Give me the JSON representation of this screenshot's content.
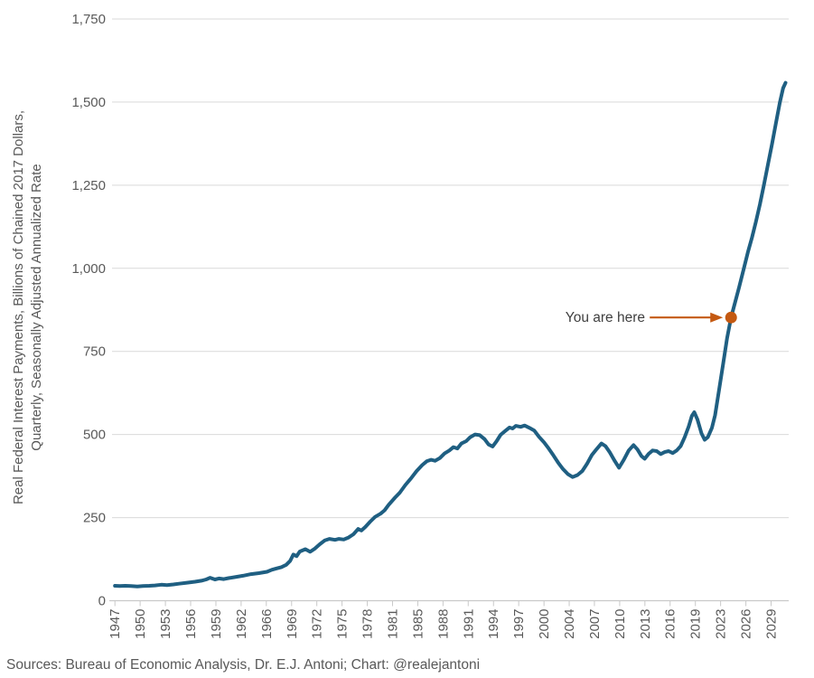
{
  "chart_data": {
    "type": "line",
    "title": "",
    "ylabel_line1": "Real Federal Interest Payments, Billions of Chained 2017 Dollars,",
    "ylabel_line2": "Quarterly, Seasonally Adjusted Annualized Rate",
    "source_note": "Sources: Bureau of Economic Analysis, Dr. E.J. Antoni; Chart: @realejantoni",
    "grid": "horizontal",
    "legend": "none",
    "x_range": [
      1946.3,
      2031.2
    ],
    "y_range": [
      0,
      1750
    ],
    "y_ticks": [
      {
        "value": 0,
        "label": "0"
      },
      {
        "value": 250,
        "label": "250"
      },
      {
        "value": 500,
        "label": "500"
      },
      {
        "value": 750,
        "label": "750"
      },
      {
        "value": 1000,
        "label": "1,000"
      },
      {
        "value": 1250,
        "label": "1,250"
      },
      {
        "value": 1500,
        "label": "1,500"
      },
      {
        "value": 1750,
        "label": "1,750"
      }
    ],
    "x_ticks": [
      {
        "year": 1947.0,
        "label": "1947"
      },
      {
        "year": 1950.15,
        "label": "1950"
      },
      {
        "year": 1953.31,
        "label": "1953"
      },
      {
        "year": 1956.46,
        "label": "1956"
      },
      {
        "year": 1959.62,
        "label": "1959"
      },
      {
        "year": 1962.77,
        "label": "1962"
      },
      {
        "year": 1965.92,
        "label": "1966"
      },
      {
        "year": 1969.08,
        "label": "1969"
      },
      {
        "year": 1972.23,
        "label": "1972"
      },
      {
        "year": 1975.38,
        "label": "1975"
      },
      {
        "year": 1978.54,
        "label": "1978"
      },
      {
        "year": 1981.69,
        "label": "1981"
      },
      {
        "year": 1984.85,
        "label": "1985"
      },
      {
        "year": 1988.0,
        "label": "1988"
      },
      {
        "year": 1991.15,
        "label": "1991"
      },
      {
        "year": 1994.31,
        "label": "1994"
      },
      {
        "year": 1997.46,
        "label": "1997"
      },
      {
        "year": 2000.62,
        "label": "2000"
      },
      {
        "year": 2003.77,
        "label": "2004"
      },
      {
        "year": 2006.92,
        "label": "2007"
      },
      {
        "year": 2010.08,
        "label": "2010"
      },
      {
        "year": 2013.23,
        "label": "2013"
      },
      {
        "year": 2016.38,
        "label": "2016"
      },
      {
        "year": 2019.54,
        "label": "2019"
      },
      {
        "year": 2022.69,
        "label": "2023"
      },
      {
        "year": 2025.85,
        "label": "2026"
      },
      {
        "year": 2029.0,
        "label": "2029"
      }
    ],
    "series": [
      {
        "name": "Real Federal Interest Payments",
        "color": "#1f5f82",
        "points": [
          [
            1947,
            45
          ],
          [
            1947.6,
            44
          ],
          [
            1948.3,
            45
          ],
          [
            1949,
            44
          ],
          [
            1949.8,
            43
          ],
          [
            1950.5,
            44
          ],
          [
            1951.3,
            45
          ],
          [
            1952,
            46
          ],
          [
            1952.8,
            48
          ],
          [
            1953.5,
            47
          ],
          [
            1954.3,
            49
          ],
          [
            1955,
            51
          ],
          [
            1956,
            54
          ],
          [
            1957,
            57
          ],
          [
            1957.8,
            60
          ],
          [
            1958.4,
            64
          ],
          [
            1958.9,
            69
          ],
          [
            1959.5,
            64
          ],
          [
            1960,
            67
          ],
          [
            1960.6,
            65
          ],
          [
            1961.2,
            68
          ],
          [
            1962,
            71
          ],
          [
            1963,
            75
          ],
          [
            1964,
            80
          ],
          [
            1965,
            83
          ],
          [
            1966,
            87
          ],
          [
            1966.6,
            93
          ],
          [
            1967.2,
            97
          ],
          [
            1967.8,
            101
          ],
          [
            1968.4,
            108
          ],
          [
            1968.9,
            120
          ],
          [
            1969.3,
            139
          ],
          [
            1969.7,
            134
          ],
          [
            1970.1,
            148
          ],
          [
            1970.8,
            155
          ],
          [
            1971.4,
            147
          ],
          [
            1972,
            157
          ],
          [
            1972.6,
            170
          ],
          [
            1973.2,
            181
          ],
          [
            1973.8,
            186
          ],
          [
            1974.5,
            183
          ],
          [
            1975,
            186
          ],
          [
            1975.6,
            184
          ],
          [
            1976.2,
            190
          ],
          [
            1976.8,
            200
          ],
          [
            1977.4,
            216
          ],
          [
            1977.8,
            211
          ],
          [
            1978.3,
            222
          ],
          [
            1978.9,
            238
          ],
          [
            1979.5,
            252
          ],
          [
            1980.2,
            262
          ],
          [
            1980.7,
            272
          ],
          [
            1981.2,
            288
          ],
          [
            1982,
            310
          ],
          [
            1982.6,
            325
          ],
          [
            1983.3,
            348
          ],
          [
            1984,
            368
          ],
          [
            1984.7,
            390
          ],
          [
            1985.4,
            408
          ],
          [
            1986,
            420
          ],
          [
            1986.5,
            424
          ],
          [
            1987,
            421
          ],
          [
            1987.6,
            429
          ],
          [
            1988.2,
            443
          ],
          [
            1988.8,
            452
          ],
          [
            1989.3,
            462
          ],
          [
            1989.8,
            458
          ],
          [
            1990.3,
            473
          ],
          [
            1990.9,
            480
          ],
          [
            1991.4,
            492
          ],
          [
            1992,
            500
          ],
          [
            1992.6,
            498
          ],
          [
            1993.2,
            486
          ],
          [
            1993.7,
            470
          ],
          [
            1994.2,
            464
          ],
          [
            1994.7,
            480
          ],
          [
            1995.2,
            499
          ],
          [
            1995.8,
            511
          ],
          [
            1996.3,
            521
          ],
          [
            1996.7,
            518
          ],
          [
            1997.1,
            526
          ],
          [
            1997.7,
            523
          ],
          [
            1998.2,
            527
          ],
          [
            1998.8,
            520
          ],
          [
            1999.4,
            512
          ],
          [
            2000,
            493
          ],
          [
            2000.6,
            477
          ],
          [
            2001.2,
            458
          ],
          [
            2001.8,
            437
          ],
          [
            2002.4,
            415
          ],
          [
            2003,
            396
          ],
          [
            2003.6,
            381
          ],
          [
            2004.2,
            372
          ],
          [
            2004.8,
            378
          ],
          [
            2005.4,
            390
          ],
          [
            2006,
            412
          ],
          [
            2006.6,
            438
          ],
          [
            2007.2,
            456
          ],
          [
            2007.8,
            473
          ],
          [
            2008.3,
            465
          ],
          [
            2008.8,
            448
          ],
          [
            2009.4,
            423
          ],
          [
            2010,
            400
          ],
          [
            2010.6,
            424
          ],
          [
            2011.2,
            452
          ],
          [
            2011.8,
            468
          ],
          [
            2012.3,
            455
          ],
          [
            2012.8,
            435
          ],
          [
            2013.2,
            427
          ],
          [
            2013.7,
            442
          ],
          [
            2014.2,
            452
          ],
          [
            2014.7,
            450
          ],
          [
            2015.2,
            441
          ],
          [
            2015.7,
            447
          ],
          [
            2016.2,
            450
          ],
          [
            2016.7,
            444
          ],
          [
            2017.2,
            452
          ],
          [
            2017.7,
            465
          ],
          [
            2018.2,
            492
          ],
          [
            2018.7,
            524
          ],
          [
            2019.1,
            556
          ],
          [
            2019.4,
            567
          ],
          [
            2019.8,
            545
          ],
          [
            2020.3,
            503
          ],
          [
            2020.7,
            484
          ],
          [
            2021.1,
            492
          ],
          [
            2021.6,
            520
          ],
          [
            2022,
            558
          ],
          [
            2022.5,
            634
          ],
          [
            2023,
            712
          ],
          [
            2023.5,
            790
          ],
          [
            2024,
            852
          ],
          [
            2024.5,
            898
          ],
          [
            2025,
            943
          ],
          [
            2025.6,
            1000
          ],
          [
            2026.1,
            1048
          ],
          [
            2026.6,
            1092
          ],
          [
            2027.1,
            1140
          ],
          [
            2027.6,
            1192
          ],
          [
            2028.1,
            1250
          ],
          [
            2028.6,
            1312
          ],
          [
            2029.1,
            1372
          ],
          [
            2029.6,
            1436
          ],
          [
            2030.1,
            1500
          ],
          [
            2030.5,
            1542
          ],
          [
            2030.8,
            1558
          ]
        ]
      }
    ],
    "annotation": {
      "label": "You are here",
      "point": {
        "year": 2024.0,
        "value": 852
      },
      "color": "#c45911"
    },
    "colors": {
      "line": "#1f5f82",
      "annotation": "#c45911",
      "gridline": "#d9d9d9",
      "axis": "#c9c9c9",
      "tick_text": "#595959",
      "annotation_text": "#3f3f3f"
    }
  }
}
